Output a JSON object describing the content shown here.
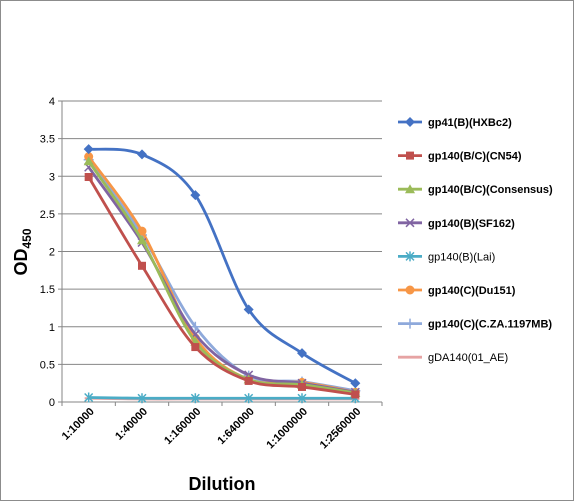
{
  "chart_data": {
    "type": "line",
    "xlabel": "Dilution",
    "ylabel_main": "OD",
    "ylabel_sub": "450",
    "categories": [
      "1:10000",
      "1:40000",
      "1:160000",
      "1:640000",
      "1:1000000",
      "1:2560000"
    ],
    "ylim": [
      0,
      4
    ],
    "yticks": [
      "0",
      "0.5",
      "1",
      "1.5",
      "2",
      "2.5",
      "3",
      "3.5",
      "4"
    ],
    "grid": "horizontal",
    "legend_position": "right",
    "series": [
      {
        "name": "gp41(B)(HXBc2)",
        "color": "#4472C4",
        "marker": "diamond",
        "bold": true,
        "values": [
          3.36,
          3.29,
          2.75,
          1.23,
          0.65,
          0.25
        ]
      },
      {
        "name": "gp140(B/C)(CN54)",
        "color": "#C0504D",
        "marker": "square",
        "bold": true,
        "values": [
          2.99,
          1.81,
          0.73,
          0.28,
          0.2,
          0.1
        ]
      },
      {
        "name": "gp140(B/C)(Consensus)",
        "color": "#9BBB59",
        "marker": "triangle",
        "bold": true,
        "values": [
          3.2,
          2.15,
          0.8,
          0.3,
          0.23,
          0.12
        ]
      },
      {
        "name": "gp140(B)(SF162)",
        "color": "#8064A2",
        "marker": "x",
        "bold": true,
        "values": [
          3.12,
          2.12,
          0.9,
          0.36,
          0.25,
          0.13
        ]
      },
      {
        "name": "gp140(B)(Lai)",
        "color": "#4BACC6",
        "marker": "star",
        "bold": false,
        "values": [
          0.06,
          0.05,
          0.05,
          0.05,
          0.05,
          0.05
        ]
      },
      {
        "name": "gp140(C)(Du151)",
        "color": "#F79646",
        "marker": "circle",
        "bold": true,
        "values": [
          3.26,
          2.27,
          0.85,
          0.3,
          0.26,
          0.13
        ]
      },
      {
        "name": "gp140(C)(C.ZA.1197MB)",
        "color": "#8EA9DB",
        "marker": "plus",
        "bold": true,
        "values": [
          3.22,
          2.22,
          1.0,
          0.35,
          0.27,
          0.15
        ]
      },
      {
        "name": "gDA140(01_AE)",
        "color": "#E6A3A3",
        "marker": "dash",
        "bold": false,
        "values": [
          0.05,
          0.04,
          0.04,
          0.04,
          0.04,
          0.04
        ]
      }
    ]
  }
}
